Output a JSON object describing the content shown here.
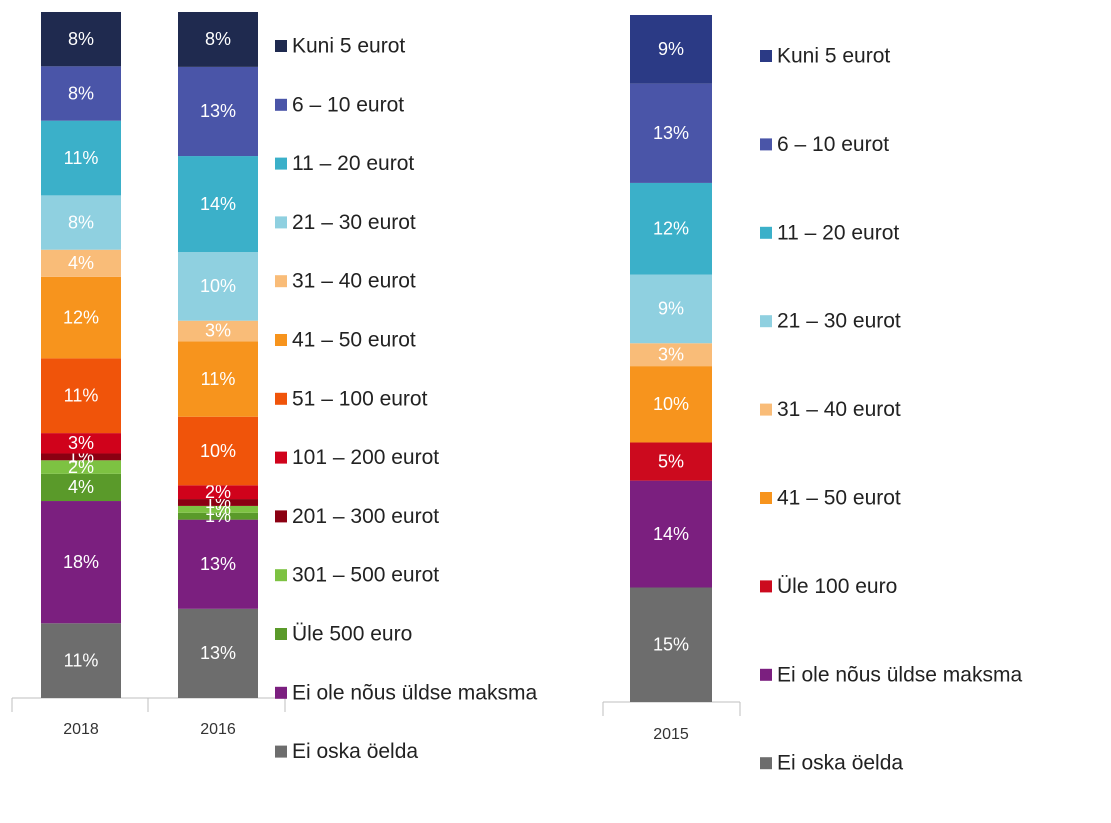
{
  "chart_data": [
    {
      "type": "stacked_bar",
      "categories": [
        "2018",
        "2016"
      ],
      "series": [
        {
          "name": "Kuni 5 eurot",
          "color": "#1f2a4f",
          "values": [
            8,
            8
          ],
          "value_labels": [
            "8%",
            "8%"
          ]
        },
        {
          "name": "6 – 10 eurot",
          "color": "#4a55a8",
          "values": [
            8,
            13
          ],
          "value_labels": [
            "8%",
            "13%"
          ]
        },
        {
          "name": "11 – 20 eurot",
          "color": "#3bb0c9",
          "values": [
            11,
            14
          ],
          "value_labels": [
            "11%",
            "14%"
          ]
        },
        {
          "name": "21 – 30 eurot",
          "color": "#8fd0e0",
          "values": [
            8,
            10
          ],
          "value_labels": [
            "8%",
            "10%"
          ]
        },
        {
          "name": "31 – 40 eurot",
          "color": "#f9bc78",
          "values": [
            4,
            3
          ],
          "value_labels": [
            "4%",
            "3%"
          ]
        },
        {
          "name": "41 – 50 eurot",
          "color": "#f7941d",
          "values": [
            12,
            11
          ],
          "value_labels": [
            "12%",
            "11%"
          ]
        },
        {
          "name": "51 – 100 eurot",
          "color": "#f0540a",
          "values": [
            11,
            10
          ],
          "value_labels": [
            "11%",
            "10%"
          ]
        },
        {
          "name": "101 – 200 eurot",
          "color": "#d0021b",
          "values": [
            3,
            2
          ],
          "value_labels": [
            "3%",
            "2%"
          ]
        },
        {
          "name": "201 – 300 eurot",
          "color": "#8b0012",
          "values": [
            1,
            1
          ],
          "value_labels": [
            "1%",
            "1%"
          ]
        },
        {
          "name": "301 – 500 eurot",
          "color": "#7dc242",
          "values": [
            2,
            1
          ],
          "value_labels": [
            "2%",
            "1%"
          ]
        },
        {
          "name": "Üle 500 euro",
          "color": "#5a9a2a",
          "values": [
            4,
            1
          ],
          "value_labels": [
            "4%",
            "1%"
          ]
        },
        {
          "name": "Ei ole nõus üldse maksma",
          "color": "#7b1f7f",
          "values": [
            18,
            13
          ],
          "value_labels": [
            "18%",
            "13%"
          ]
        },
        {
          "name": "Ei oska öelda",
          "color": "#6d6d6d",
          "values": [
            11,
            13
          ],
          "value_labels": [
            "11%",
            "13%"
          ]
        }
      ]
    },
    {
      "type": "stacked_bar",
      "categories": [
        "2015"
      ],
      "series": [
        {
          "name": "Kuni 5 eurot",
          "color": "#2b3a85",
          "values": [
            9
          ],
          "value_labels": [
            "9%"
          ]
        },
        {
          "name": "6 – 10 eurot",
          "color": "#4a55a8",
          "values": [
            13
          ],
          "value_labels": [
            "13%"
          ]
        },
        {
          "name": "11 – 20 eurot",
          "color": "#3bb0c9",
          "values": [
            12
          ],
          "value_labels": [
            "12%"
          ]
        },
        {
          "name": "21 – 30 eurot",
          "color": "#8fd0e0",
          "values": [
            9
          ],
          "value_labels": [
            "9%"
          ]
        },
        {
          "name": "31 – 40 eurot",
          "color": "#f9bc78",
          "values": [
            3
          ],
          "value_labels": [
            "3%"
          ]
        },
        {
          "name": "41 – 50 eurot",
          "color": "#f7941d",
          "values": [
            10
          ],
          "value_labels": [
            "10%"
          ]
        },
        {
          "name": "Üle 100 euro",
          "color": "#cc0a1e",
          "values": [
            5
          ],
          "value_labels": [
            "5%"
          ]
        },
        {
          "name": "Ei ole nõus üldse maksma",
          "color": "#7b1f7f",
          "values": [
            14
          ],
          "value_labels": [
            "14%"
          ]
        },
        {
          "name": "Ei oska öelda",
          "color": "#6d6d6d",
          "values": [
            15
          ],
          "value_labels": [
            "15%"
          ]
        }
      ]
    }
  ]
}
